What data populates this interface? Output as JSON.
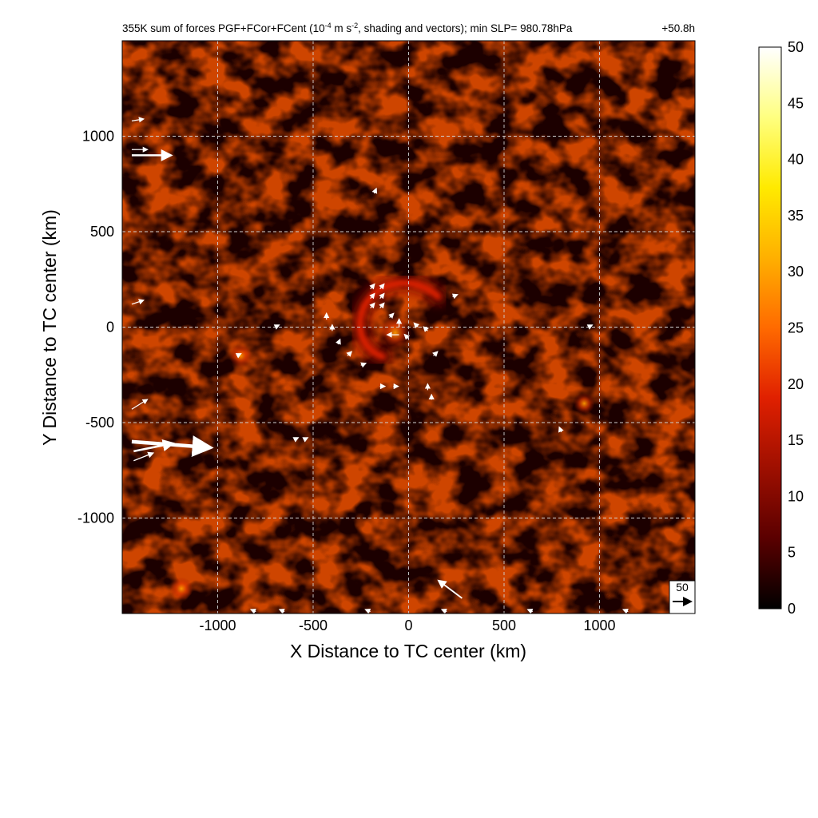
{
  "chart_data": {
    "type": "heatmap",
    "title_main": "355K sum of forces PGF+FCor+FCent (10",
    "title_sup": "-4",
    "title_mid": " m s",
    "title_sup2": "-2",
    "title_rest": ", shading and vectors); min SLP= 980.78hPa",
    "time_label": "+50.8h",
    "xlabel": "X Distance to TC center (km)",
    "ylabel": "Y Distance to TC center (km)",
    "xlim": [
      -1500,
      1500
    ],
    "ylim": [
      -1500,
      1500
    ],
    "xticks": [
      -1000,
      -500,
      0,
      500,
      1000
    ],
    "yticks": [
      -1000,
      -500,
      0,
      500,
      1000
    ],
    "grid": true,
    "colorbar": {
      "min": 0,
      "max": 50,
      "ticks": [
        0,
        5,
        10,
        15,
        20,
        25,
        30,
        35,
        40,
        45,
        50
      ],
      "colormap": [
        "#000000",
        "#5a0000",
        "#9e0f00",
        "#e02000",
        "#ff6a00",
        "#ffb000",
        "#ffea00",
        "#ffff80",
        "#ffffff"
      ]
    },
    "reference_vector": {
      "label": "50",
      "value": 50
    },
    "field": {
      "background_level": 6,
      "features": [
        {
          "type": "spiral_band",
          "center": [
            -60,
            -20
          ],
          "radius": 280,
          "angle_start_deg": 120,
          "angle_end_deg": 320,
          "value": 16
        },
        {
          "type": "spot",
          "center": [
            -70,
            -30
          ],
          "value": 24
        },
        {
          "type": "spot",
          "center": [
            -880,
            -150
          ],
          "value": 14
        },
        {
          "type": "spot",
          "center": [
            920,
            -400
          ],
          "value": 12
        },
        {
          "type": "spot",
          "center": [
            -1190,
            -1370
          ],
          "value": 14
        }
      ]
    },
    "vectors": [
      {
        "x": -1450,
        "y": 900,
        "u": 100,
        "v": 0
      },
      {
        "x": -1450,
        "y": -600,
        "u": 200,
        "v": -15
      },
      {
        "x": -1440,
        "y": -650,
        "u": 100,
        "v": 20
      },
      {
        "x": -1440,
        "y": -700,
        "u": 50,
        "v": 20
      },
      {
        "x": -1450,
        "y": -430,
        "u": 40,
        "v": 25
      },
      {
        "x": -1450,
        "y": 1080,
        "u": 30,
        "v": 5
      },
      {
        "x": -1450,
        "y": 120,
        "u": 30,
        "v": 10
      },
      {
        "x": -1450,
        "y": 930,
        "u": 40,
        "v": 0
      },
      {
        "x": 280,
        "y": -1420,
        "u": -60,
        "v": 45
      },
      {
        "x": -800,
        "y": -1490,
        "u": -12,
        "v": 5
      },
      {
        "x": -650,
        "y": -1490,
        "u": -12,
        "v": 5
      },
      {
        "x": -200,
        "y": -1490,
        "u": -12,
        "v": 5
      },
      {
        "x": 200,
        "y": -1490,
        "u": -12,
        "v": 5
      },
      {
        "x": 650,
        "y": -1490,
        "u": -12,
        "v": 5
      },
      {
        "x": 1150,
        "y": -1490,
        "u": -12,
        "v": 5
      },
      {
        "x": -200,
        "y": 200,
        "u": 10,
        "v": 12
      },
      {
        "x": -200,
        "y": 150,
        "u": 10,
        "v": 12
      },
      {
        "x": -200,
        "y": 100,
        "u": 10,
        "v": 12
      },
      {
        "x": -150,
        "y": 200,
        "u": 10,
        "v": 12
      },
      {
        "x": -150,
        "y": 150,
        "u": 10,
        "v": 12
      },
      {
        "x": -150,
        "y": 100,
        "u": 10,
        "v": 12
      },
      {
        "x": -100,
        "y": 50,
        "u": 10,
        "v": 10
      },
      {
        "x": -50,
        "y": 0,
        "u": 0,
        "v": 20
      },
      {
        "x": -50,
        "y": -40,
        "u": -30,
        "v": 0
      },
      {
        "x": 0,
        "y": -60,
        "u": -10,
        "v": 10
      },
      {
        "x": 50,
        "y": 0,
        "u": -10,
        "v": 10
      },
      {
        "x": 100,
        "y": -20,
        "u": -10,
        "v": 10
      },
      {
        "x": -430,
        "y": 40,
        "u": 0,
        "v": 15
      },
      {
        "x": -400,
        "y": -20,
        "u": 0,
        "v": 15
      },
      {
        "x": -370,
        "y": -90,
        "u": 5,
        "v": 12
      },
      {
        "x": -320,
        "y": -150,
        "u": 10,
        "v": 10
      },
      {
        "x": -250,
        "y": -200,
        "u": 12,
        "v": 5
      },
      {
        "x": -150,
        "y": -310,
        "u": 12,
        "v": 0
      },
      {
        "x": -80,
        "y": -310,
        "u": 12,
        "v": 0
      },
      {
        "x": 100,
        "y": -330,
        "u": 0,
        "v": 15
      },
      {
        "x": 120,
        "y": -380,
        "u": 0,
        "v": 12
      },
      {
        "x": 230,
        "y": 160,
        "u": 12,
        "v": 5
      },
      {
        "x": 800,
        "y": -550,
        "u": -5,
        "v": 12
      },
      {
        "x": -600,
        "y": -590,
        "u": 10,
        "v": 5
      },
      {
        "x": -550,
        "y": -590,
        "u": 10,
        "v": 5
      },
      {
        "x": -900,
        "y": -150,
        "u": 10,
        "v": 5
      },
      {
        "x": -700,
        "y": 0,
        "u": 10,
        "v": 5
      },
      {
        "x": -180,
        "y": 700,
        "u": 5,
        "v": 12
      },
      {
        "x": 940,
        "y": 0,
        "u": 10,
        "v": 5
      },
      {
        "x": 130,
        "y": -150,
        "u": 10,
        "v": 10
      }
    ]
  }
}
